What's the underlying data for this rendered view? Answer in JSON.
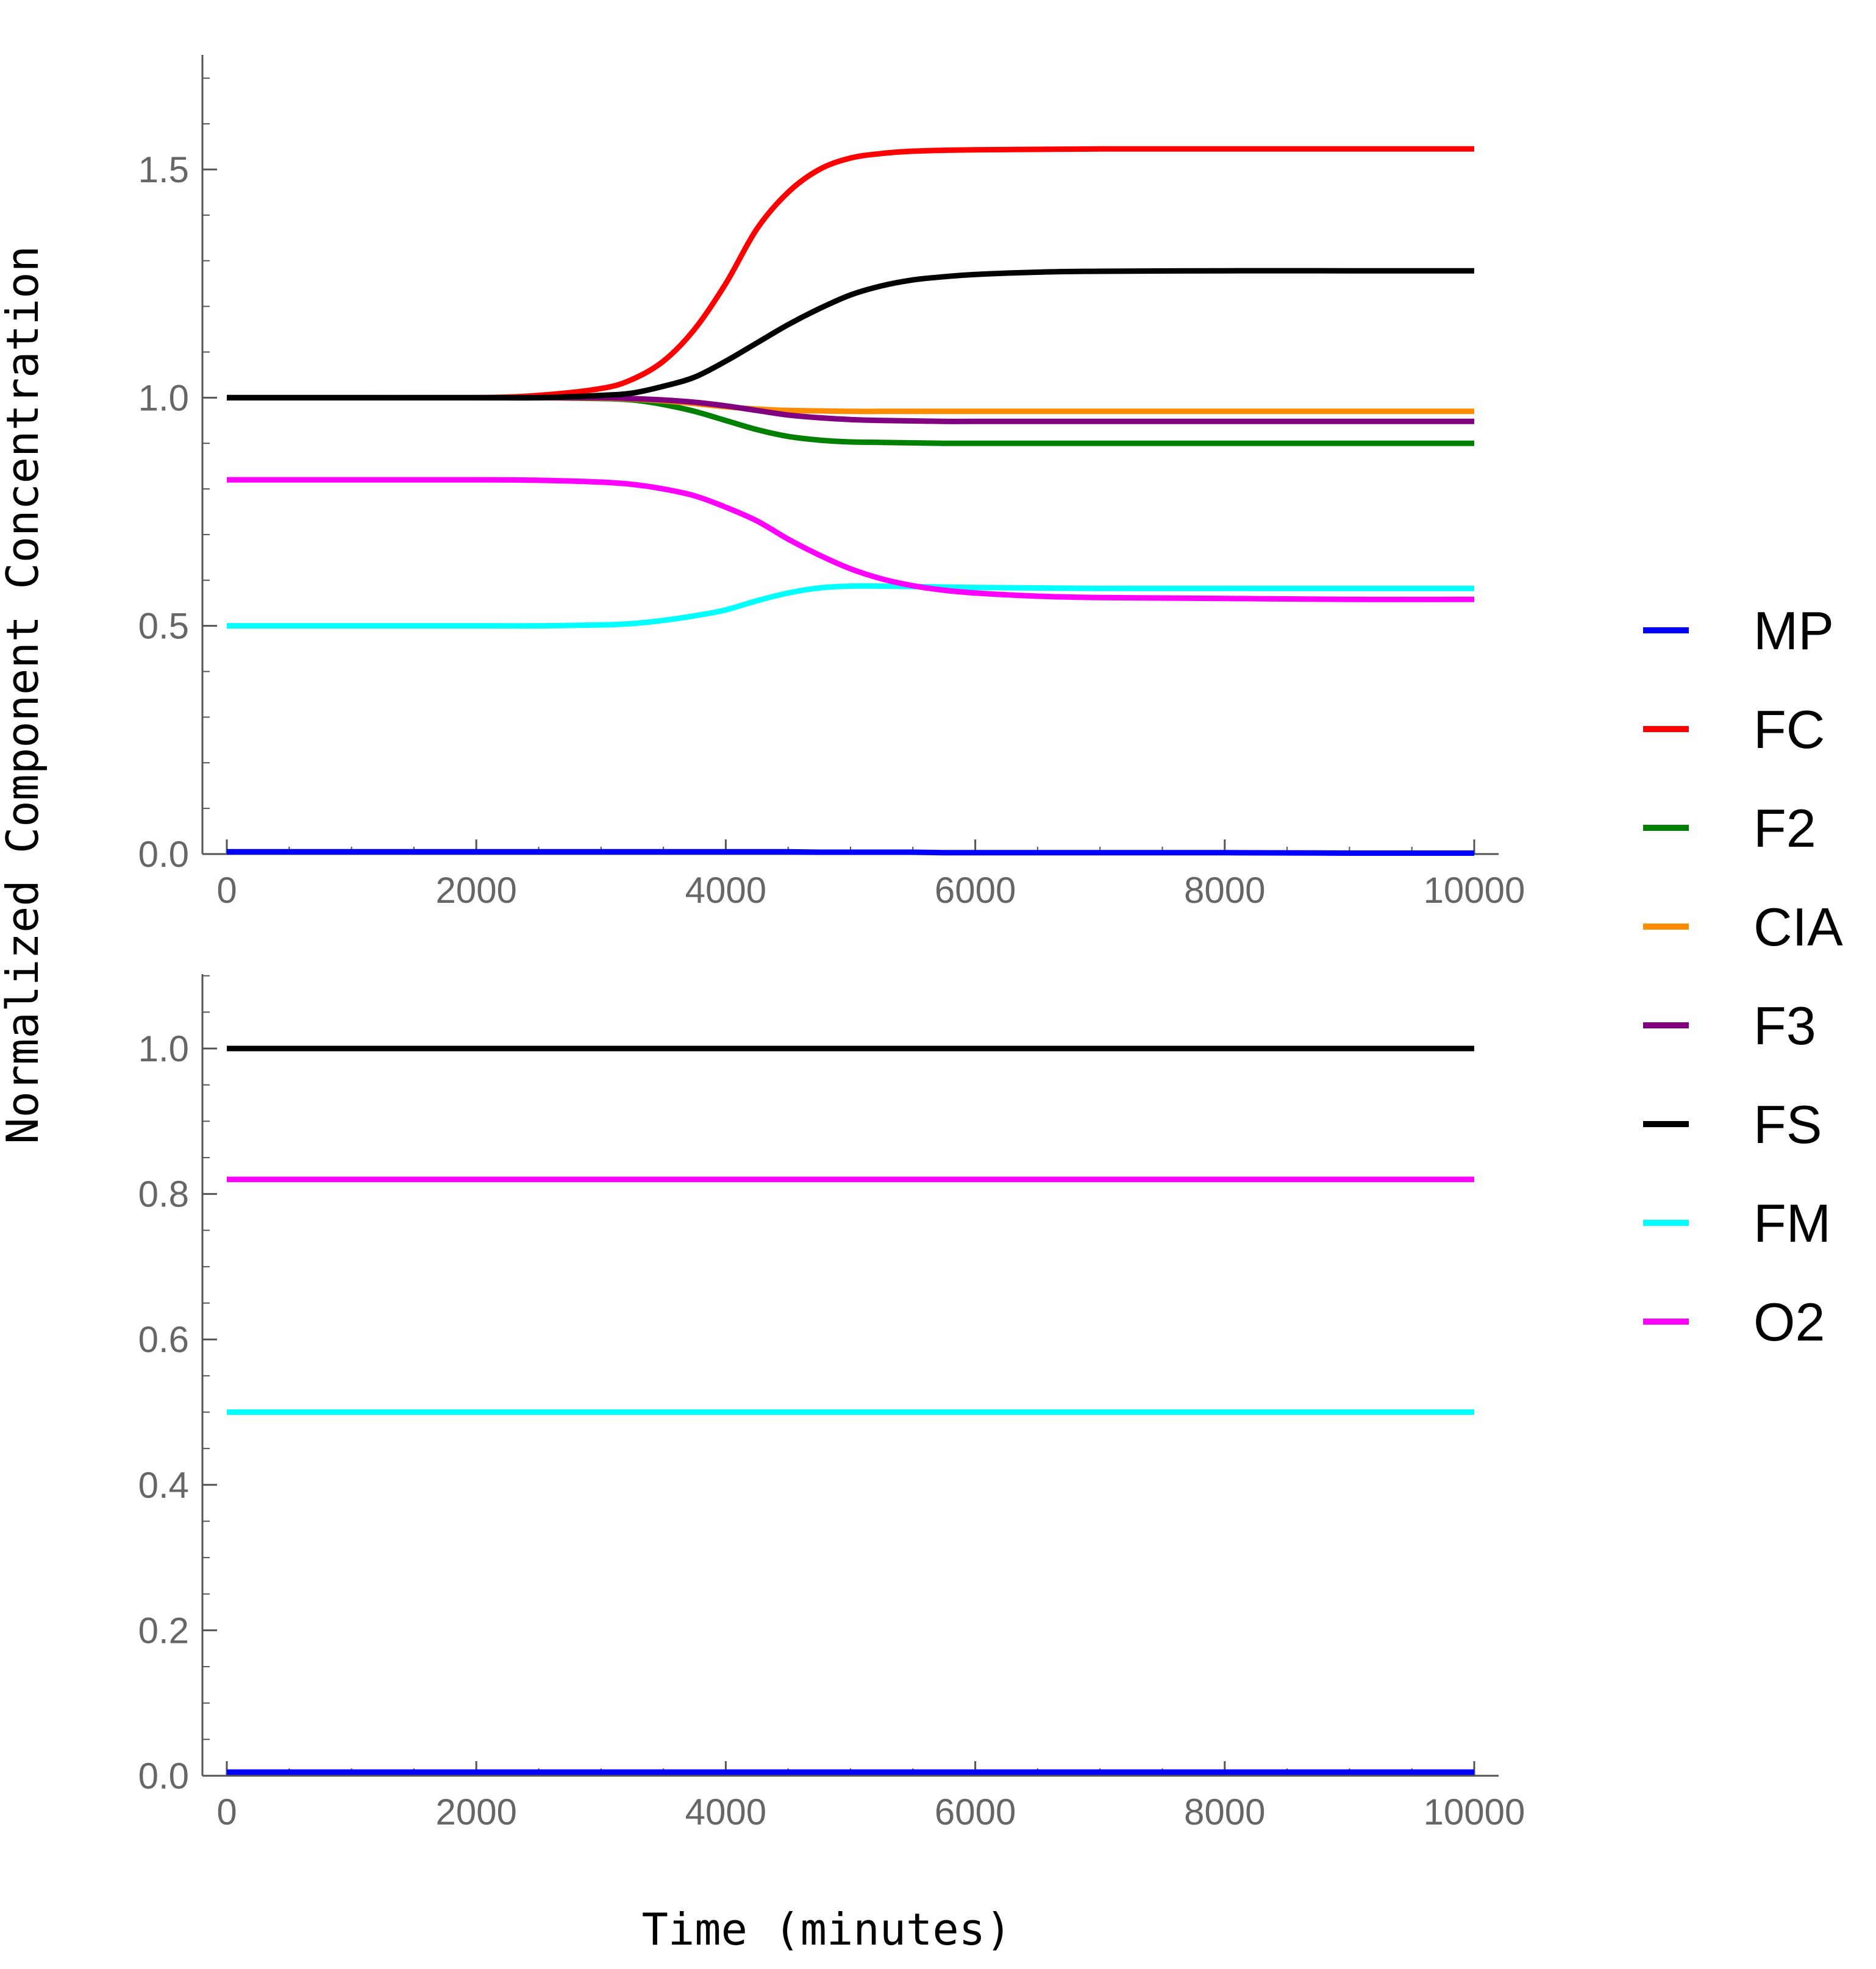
{
  "chart_data": {
    "type": "line",
    "ylabel": "Normalized Component Concentration",
    "xlabel": "Time (minutes)",
    "legend": {
      "placement": "right",
      "entries": [
        {
          "name": "MP",
          "color": "#0000ff"
        },
        {
          "name": "FC",
          "color": "#ff0000"
        },
        {
          "name": "F2",
          "color": "#008000"
        },
        {
          "name": "CIA",
          "color": "#ff8c00"
        },
        {
          "name": "F3",
          "color": "#800080"
        },
        {
          "name": "FS",
          "color": "#000000"
        },
        {
          "name": "FM",
          "color": "#00ffff"
        },
        {
          "name": "O2",
          "color": "#ff00ff"
        }
      ]
    },
    "panels": [
      {
        "xlim": [
          0,
          10000
        ],
        "ylim": [
          0,
          1.75
        ],
        "xticks": [
          "0",
          "2000",
          "4000",
          "6000",
          "8000",
          "10000"
        ],
        "yticks": [
          "0.0",
          "0.5",
          "1.0",
          "1.5"
        ],
        "x": [
          0,
          1000,
          2000,
          2500,
          3000,
          3250,
          3500,
          3750,
          4000,
          4250,
          4500,
          4750,
          5000,
          5250,
          5500,
          5750,
          6000,
          6500,
          7000,
          8000,
          9000,
          10000
        ],
        "series": [
          {
            "name": "MP",
            "color": "#0000ff",
            "values": [
              0.005,
              0.005,
              0.005,
              0.005,
              0.005,
              0.005,
              0.005,
              0.005,
              0.005,
              0.005,
              0.005,
              0.004,
              0.004,
              0.004,
              0.004,
              0.003,
              0.003,
              0.003,
              0.003,
              0.003,
              0.002,
              0.002
            ]
          },
          {
            "name": "FC",
            "color": "#ff0000",
            "values": [
              1.0,
              1.0,
              1.0,
              1.005,
              1.02,
              1.04,
              1.08,
              1.15,
              1.25,
              1.37,
              1.45,
              1.5,
              1.525,
              1.535,
              1.54,
              1.542,
              1.543,
              1.544,
              1.545,
              1.545,
              1.545,
              1.545
            ]
          },
          {
            "name": "F2",
            "color": "#008000",
            "values": [
              1.0,
              1.0,
              1.0,
              1.0,
              0.998,
              0.995,
              0.985,
              0.97,
              0.95,
              0.93,
              0.915,
              0.907,
              0.903,
              0.902,
              0.901,
              0.9,
              0.9,
              0.9,
              0.9,
              0.9,
              0.9,
              0.9
            ]
          },
          {
            "name": "CIA",
            "color": "#ff8c00",
            "values": [
              1.0,
              1.0,
              1.0,
              1.0,
              0.999,
              0.997,
              0.993,
              0.987,
              0.98,
              0.975,
              0.972,
              0.971,
              0.97,
              0.97,
              0.97,
              0.97,
              0.97,
              0.97,
              0.97,
              0.97,
              0.97,
              0.97
            ]
          },
          {
            "name": "F3",
            "color": "#800080",
            "values": [
              1.0,
              1.0,
              1.0,
              1.0,
              1.0,
              0.998,
              0.995,
              0.99,
              0.982,
              0.972,
              0.962,
              0.956,
              0.952,
              0.95,
              0.949,
              0.948,
              0.948,
              0.948,
              0.948,
              0.948,
              0.948,
              0.948
            ]
          },
          {
            "name": "FS",
            "color": "#000000",
            "values": [
              1.0,
              1.0,
              1.0,
              1.0,
              1.005,
              1.01,
              1.025,
              1.045,
              1.08,
              1.12,
              1.16,
              1.195,
              1.225,
              1.245,
              1.258,
              1.265,
              1.27,
              1.275,
              1.277,
              1.278,
              1.278,
              1.278
            ]
          },
          {
            "name": "FM",
            "color": "#00ffff",
            "values": [
              0.5,
              0.5,
              0.5,
              0.5,
              0.502,
              0.505,
              0.512,
              0.522,
              0.535,
              0.555,
              0.572,
              0.583,
              0.587,
              0.587,
              0.586,
              0.585,
              0.584,
              0.583,
              0.582,
              0.582,
              0.582,
              0.582
            ]
          },
          {
            "name": "O2",
            "color": "#ff00ff",
            "values": [
              0.82,
              0.82,
              0.82,
              0.819,
              0.815,
              0.81,
              0.8,
              0.785,
              0.76,
              0.73,
              0.69,
              0.655,
              0.625,
              0.603,
              0.588,
              0.578,
              0.572,
              0.565,
              0.562,
              0.56,
              0.558,
              0.558
            ]
          }
        ]
      },
      {
        "xlim": [
          0,
          10000
        ],
        "ylim": [
          0,
          1.1
        ],
        "xticks": [
          "0",
          "2000",
          "4000",
          "6000",
          "8000",
          "10000"
        ],
        "yticks": [
          "0.0",
          "0.2",
          "0.4",
          "0.6",
          "0.8",
          "1.0"
        ],
        "x": [
          0,
          10000
        ],
        "series": [
          {
            "name": "MP",
            "color": "#0000ff",
            "values": [
              0.005,
              0.005
            ]
          },
          {
            "name": "FC",
            "color": "#ff0000",
            "values": [
              1.0,
              1.0
            ]
          },
          {
            "name": "F2",
            "color": "#008000",
            "values": [
              1.0,
              1.0
            ]
          },
          {
            "name": "CIA",
            "color": "#ff8c00",
            "values": [
              1.0,
              1.0
            ]
          },
          {
            "name": "F3",
            "color": "#800080",
            "values": [
              1.0,
              1.0
            ]
          },
          {
            "name": "FS",
            "color": "#000000",
            "values": [
              1.0,
              1.0
            ]
          },
          {
            "name": "FM",
            "color": "#00ffff",
            "values": [
              0.5,
              0.5
            ]
          },
          {
            "name": "O2",
            "color": "#ff00ff",
            "values": [
              0.82,
              0.82
            ]
          }
        ]
      }
    ]
  }
}
